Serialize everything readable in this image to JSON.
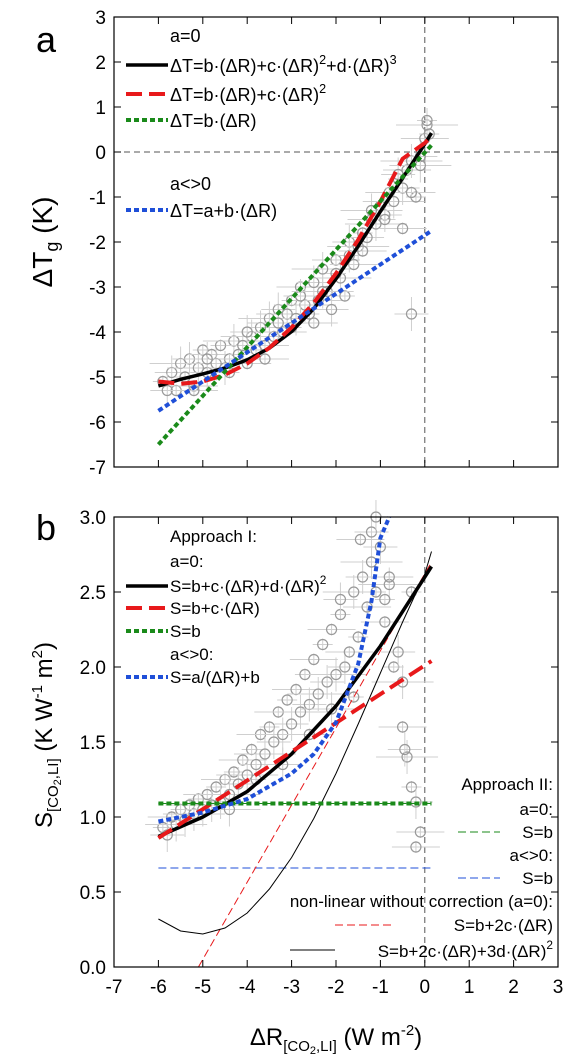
{
  "chart_data": [
    {
      "panel_label": "a",
      "type": "scatter",
      "ylabel": {
        "main": "ΔT",
        "sub": "g",
        "unit": " (K)"
      },
      "xlim": [
        -7,
        3
      ],
      "ylim": [
        -7,
        3
      ],
      "xticks": [
        -7,
        -6,
        -5,
        -4,
        -3,
        -2,
        -1,
        0,
        1,
        2,
        3
      ],
      "yticks": [
        -7,
        -6,
        -5,
        -4,
        -3,
        -2,
        -1,
        0,
        1,
        2,
        3
      ],
      "x_tick_labels_shown": false,
      "reference_lines": {
        "x": 0,
        "y": 0,
        "style": "dashed"
      },
      "legend": {
        "placement": "top-left",
        "group_a0": "a=0",
        "group_an0": "a<>0",
        "entries": [
          {
            "id": "cubic",
            "text": "ΔT=b·(ΔR)+c·(ΔR)²+d·(ΔR)³",
            "color": "#000000",
            "style": "solid"
          },
          {
            "id": "quad",
            "text": "ΔT=b·(ΔR)+c·(ΔR)²",
            "color": "#e8191b",
            "style": "long-dash"
          },
          {
            "id": "lin",
            "text": "ΔT=b·(ΔR)",
            "color": "#1a8a1a",
            "style": "short-dash"
          },
          {
            "id": "linoff",
            "text": "ΔT=a+b·(ΔR)",
            "color": "#1f4fd8",
            "style": "short-dash"
          }
        ]
      },
      "series": [
        {
          "id": "cubic",
          "x": [
            -6,
            -5.5,
            -5,
            -4.5,
            -4,
            -3.5,
            -3,
            -2.5,
            -2,
            -1.5,
            -1,
            -0.5,
            0,
            0.15
          ],
          "y": [
            -5.2,
            -5.05,
            -4.93,
            -4.8,
            -4.62,
            -4.36,
            -3.99,
            -3.48,
            -2.82,
            -2.09,
            -1.32,
            -0.58,
            0.18,
            0.42
          ]
        },
        {
          "id": "quad",
          "x": [
            -6,
            -5.5,
            -5,
            -4.5,
            -4,
            -3.5,
            -3,
            -2.5,
            -2,
            -1.5,
            -1,
            -0.5,
            0,
            0.15
          ],
          "y": [
            -5.1,
            -5.15,
            -5.1,
            -4.95,
            -4.7,
            -4.35,
            -3.9,
            -3.35,
            -2.7,
            -1.95,
            -1.1,
            -0.15,
            0.2,
            0.35
          ]
        },
        {
          "id": "lin",
          "x": [
            -6,
            0.15
          ],
          "y": [
            -6.5,
            0.15
          ]
        },
        {
          "id": "linoff",
          "x": [
            -6,
            0.15
          ],
          "y": [
            -5.75,
            -1.75
          ]
        }
      ],
      "scatter_points": {
        "marker": "open-circle",
        "color": "#9a9a9a",
        "x": [
          -5.9,
          -5.7,
          -5.6,
          -5.5,
          -5.4,
          -5.3,
          -5.2,
          -5.1,
          -5.0,
          -4.9,
          -4.8,
          -4.7,
          -4.6,
          -4.5,
          -4.4,
          -4.3,
          -4.2,
          -4.1,
          -4.0,
          -3.9,
          -3.8,
          -3.7,
          -3.6,
          -3.5,
          -3.4,
          -3.3,
          -3.2,
          -3.1,
          -3.0,
          -2.9,
          -2.8,
          -2.7,
          -2.6,
          -2.5,
          -2.4,
          -2.3,
          -2.2,
          -2.1,
          -2.0,
          -1.9,
          -1.8,
          -1.7,
          -1.6,
          -1.5,
          -1.4,
          -1.3,
          -1.2,
          -1.1,
          -1.0,
          -0.9,
          -0.8,
          -0.7,
          -0.6,
          -0.5,
          -0.4,
          -0.3,
          -0.2,
          -0.1,
          0.0,
          0.05,
          0.1,
          -5.8,
          -5.2,
          -4.9,
          -4.4,
          -4.0,
          -3.6,
          -3.3,
          -3.0,
          -2.8,
          -2.5,
          -2.3,
          -2.0,
          -1.7,
          -1.4,
          -1.2,
          -0.9,
          -0.6,
          -0.3,
          -0.1,
          0.05,
          -0.3,
          -0.5
        ],
        "y": [
          -5.1,
          -4.9,
          -5.3,
          -4.7,
          -5.0,
          -4.6,
          -5.2,
          -4.8,
          -4.4,
          -4.9,
          -4.5,
          -4.7,
          -4.3,
          -4.8,
          -4.6,
          -4.2,
          -4.5,
          -4.3,
          -4.7,
          -4.1,
          -4.4,
          -3.9,
          -4.3,
          -3.7,
          -4.1,
          -3.5,
          -4.0,
          -3.6,
          -3.3,
          -3.7,
          -3.0,
          -3.4,
          -3.6,
          -2.9,
          -3.3,
          -2.6,
          -3.1,
          -3.5,
          -2.4,
          -2.8,
          -3.2,
          -2.0,
          -2.5,
          -2.1,
          -1.8,
          -1.9,
          -1.5,
          -1.6,
          -1.2,
          -1.4,
          -0.9,
          -1.1,
          -0.6,
          -0.8,
          -0.4,
          -0.2,
          -1.0,
          -0.1,
          0.3,
          0.6,
          0.4,
          -5.3,
          -5.3,
          -4.6,
          -4.9,
          -4.0,
          -4.6,
          -3.8,
          -3.9,
          -3.2,
          -3.8,
          -3.1,
          -2.7,
          -2.3,
          -2.2,
          -1.3,
          -1.5,
          -0.5,
          -0.9,
          -0.3,
          0.7,
          -3.6,
          -1.7
        ]
      }
    },
    {
      "panel_label": "b",
      "type": "scatter",
      "ylabel": {
        "main": "S",
        "sub": "[CO",
        "sub2": "2",
        "sub3": ",LI]",
        "unit": " (K W",
        "sup1": "-1",
        "unit2": " m",
        "sup2": "2",
        "unit3": ")"
      },
      "xlabel": {
        "main": "ΔR",
        "sub": "[CO",
        "sub2": "2",
        "sub3": ",LI]",
        "unit": " (W m",
        "sup": "-2",
        "unit2": ")"
      },
      "xlim": [
        -7,
        3
      ],
      "ylim": [
        0,
        3
      ],
      "xticks": [
        -7,
        -6,
        -5,
        -4,
        -3,
        -2,
        -1,
        0,
        1,
        2,
        3
      ],
      "xtick_labels": [
        "-7",
        "-6",
        "-5",
        "-4",
        "-3",
        "-2",
        "-1",
        "0",
        "1",
        "2",
        "3"
      ],
      "yticks": [
        0,
        0.5,
        1,
        1.5,
        2,
        2.5,
        3
      ],
      "ytick_labels": [
        "0.0",
        "0.5",
        "1.0",
        "1.5",
        "2.0",
        "2.5",
        "3.0"
      ],
      "reference_lines": {
        "x": 0,
        "style": "dashed"
      },
      "legend_left": {
        "placement": "top-left",
        "heading": "Approach I:",
        "group_a0": "a=0:",
        "group_an0": "a<>0:",
        "entries": [
          {
            "id": "I_quad",
            "text": "S=b+c·(ΔR)+d·(ΔR)²",
            "color": "#000000",
            "style": "solid"
          },
          {
            "id": "I_lin",
            "text": "S=b+c·(ΔR)",
            "color": "#e8191b",
            "style": "long-dash"
          },
          {
            "id": "I_const",
            "text": "S=b",
            "color": "#1a8a1a",
            "style": "short-dash"
          },
          {
            "id": "I_recip",
            "text": "S=a/(ΔR)+b",
            "color": "#1f4fd8",
            "style": "short-dash"
          }
        ]
      },
      "legend_right": {
        "placement": "bottom-right",
        "heading": "Approach II:",
        "group_a0": "a=0:",
        "group_an0": "a<>0:",
        "group_nl": "non-linear without correction (a=0):",
        "entries": [
          {
            "id": "II_a0",
            "text": "S=b",
            "color": "#1a8a1a",
            "style": "thin-dash"
          },
          {
            "id": "II_an0",
            "text": "S=b",
            "color": "#1f4fd8",
            "style": "thin-dash"
          },
          {
            "id": "nl_lin",
            "text": "S=b+2c·(ΔR)",
            "color": "#e8191b",
            "style": "thin-dash"
          },
          {
            "id": "nl_quad",
            "text": "S=b+2c·(ΔR)+3d·(ΔR)²",
            "color": "#000000",
            "style": "thin-solid"
          }
        ]
      },
      "series": [
        {
          "id": "I_quad",
          "x": [
            -6,
            -5,
            -4,
            -3,
            -2,
            -1,
            0,
            0.15
          ],
          "y": [
            0.87,
            1.0,
            1.17,
            1.42,
            1.74,
            2.14,
            2.6,
            2.67
          ]
        },
        {
          "id": "I_lin",
          "x": [
            -6,
            0.15
          ],
          "y": [
            0.86,
            2.04
          ]
        },
        {
          "id": "I_const",
          "x": [
            -6,
            0.15
          ],
          "y": [
            1.09,
            1.09
          ]
        },
        {
          "id": "I_recip",
          "x": [
            -6,
            -5,
            -4,
            -3,
            -2.5,
            -2,
            -1.5,
            -1.2,
            -1.0,
            -0.8
          ],
          "y": [
            0.97,
            1.03,
            1.12,
            1.29,
            1.42,
            1.63,
            2.02,
            2.44,
            2.86,
            3.0
          ]
        },
        {
          "id": "II_a0",
          "x": [
            -6,
            0.15
          ],
          "y": [
            1.09,
            1.09
          ]
        },
        {
          "id": "II_an0",
          "x": [
            -6,
            0.15
          ],
          "y": [
            0.66,
            0.66
          ]
        },
        {
          "id": "nl_lin",
          "x": [
            -5.1,
            0.15
          ],
          "y": [
            0.0,
            2.7
          ]
        },
        {
          "id": "nl_quad",
          "x": [
            -6,
            -5.5,
            -5,
            -4.5,
            -4,
            -3.5,
            -3,
            -2.5,
            -2,
            -1.5,
            -1,
            -0.5,
            0,
            0.15
          ],
          "y": [
            0.32,
            0.24,
            0.22,
            0.26,
            0.36,
            0.52,
            0.73,
            0.99,
            1.29,
            1.62,
            1.96,
            2.3,
            2.62,
            2.77
          ]
        }
      ],
      "scatter_points": {
        "marker": "open-circle",
        "color": "#9a9a9a",
        "x": [
          -5.9,
          -5.8,
          -5.7,
          -5.6,
          -5.5,
          -5.4,
          -5.3,
          -5.2,
          -5.1,
          -5.0,
          -4.9,
          -4.8,
          -4.7,
          -4.6,
          -4.5,
          -4.4,
          -4.3,
          -4.2,
          -4.1,
          -4.0,
          -3.9,
          -3.8,
          -3.7,
          -3.6,
          -3.5,
          -3.4,
          -3.3,
          -3.2,
          -3.1,
          -3.0,
          -2.9,
          -2.8,
          -2.7,
          -2.6,
          -2.5,
          -2.4,
          -2.3,
          -2.2,
          -2.1,
          -2.0,
          -1.9,
          -1.8,
          -1.7,
          -1.6,
          -1.5,
          -1.4,
          -1.3,
          -1.2,
          -1.1,
          -1.0,
          -0.9,
          -0.8,
          -0.7,
          -0.6,
          -0.5,
          -0.4,
          -0.3,
          -0.2,
          -0.1,
          -4.4,
          -3.8,
          -3.2,
          -2.6,
          -2.1,
          -1.6,
          -1.2,
          -0.8,
          -0.5,
          -0.3,
          -1.9,
          -1.45,
          -1.1,
          -0.9,
          -0.45,
          -0.2
        ],
        "y": [
          0.93,
          0.88,
          1.0,
          0.95,
          1.05,
          0.98,
          1.08,
          1.02,
          1.12,
          1.05,
          1.15,
          1.08,
          1.2,
          1.1,
          1.25,
          1.15,
          1.3,
          1.22,
          1.38,
          1.28,
          1.45,
          1.35,
          1.55,
          1.42,
          1.6,
          1.5,
          1.7,
          1.55,
          1.78,
          1.62,
          1.85,
          1.7,
          1.95,
          1.75,
          2.05,
          1.82,
          2.15,
          1.9,
          2.25,
          1.95,
          2.35,
          2.0,
          2.1,
          2.5,
          2.2,
          2.6,
          2.4,
          2.7,
          2.5,
          2.8,
          2.3,
          2.55,
          2.0,
          2.1,
          1.6,
          1.4,
          1.2,
          1.1,
          0.9,
          1.05,
          1.25,
          1.35,
          1.55,
          1.72,
          1.8,
          2.9,
          2.6,
          1.9,
          2.5,
          2.45,
          2.85,
          3.0,
          2.45,
          1.45,
          0.8
        ]
      }
    }
  ]
}
